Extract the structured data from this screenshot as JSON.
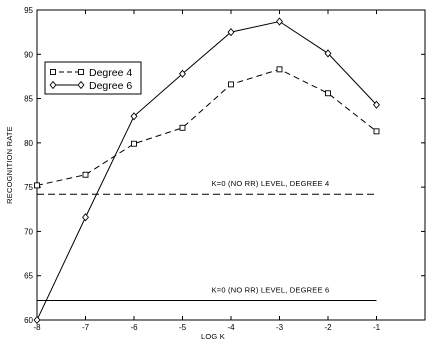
{
  "chart_data": {
    "type": "line",
    "xlabel": "LOG K",
    "ylabel": "RECOGNITION RATE",
    "xlim": [
      -8,
      0
    ],
    "ylim": [
      60,
      95
    ],
    "xticks": [
      -8,
      -7,
      -6,
      -5,
      -4,
      -3,
      -2,
      -1
    ],
    "xtick_labels": [
      "-8",
      "-7",
      "-6",
      "-5",
      "-4",
      "-3",
      "-2",
      "-1"
    ],
    "yticks": [
      60,
      65,
      70,
      75,
      80,
      85,
      90,
      95
    ],
    "ytick_labels": [
      "60",
      "65",
      "70",
      "75",
      "80",
      "85",
      "90",
      "95"
    ],
    "grid": false,
    "legend_position": "top-left",
    "series": [
      {
        "name": "Degree 4",
        "style": "dashed",
        "marker": "square",
        "x": [
          -8,
          -7,
          -6,
          -5,
          -4,
          -3,
          -2,
          -1
        ],
        "y": [
          75.2,
          76.4,
          79.9,
          81.7,
          86.6,
          88.3,
          85.6,
          81.3
        ]
      },
      {
        "name": "Degree 6",
        "style": "solid",
        "marker": "diamond",
        "x": [
          -8,
          -7,
          -6,
          -5,
          -4,
          -3,
          -2,
          -1
        ],
        "y": [
          60.0,
          71.6,
          83.0,
          87.8,
          92.5,
          93.7,
          90.1,
          84.3
        ]
      }
    ],
    "reference_lines": [
      {
        "label": "K=0 (NO RR) LEVEL, DEGREE 4",
        "y": 74.2,
        "x_start": -8,
        "x_end": -1,
        "style": "dashed"
      },
      {
        "label": "K=0 (NO RR) LEVEL, DEGREE 6",
        "y": 62.2,
        "x_start": -8,
        "x_end": -1,
        "style": "solid"
      }
    ]
  }
}
